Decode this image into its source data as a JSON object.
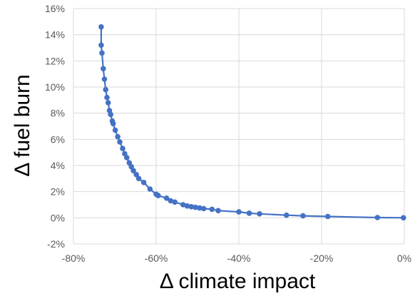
{
  "chart_data": {
    "type": "scatter",
    "title": "",
    "xlabel": "Δ climate impact",
    "ylabel": "Δ fuel burn",
    "xlim": [
      -80,
      0
    ],
    "ylim": [
      -2,
      16
    ],
    "x_ticks": [
      -80,
      -60,
      -40,
      -20,
      0
    ],
    "y_ticks": [
      -2,
      0,
      2,
      4,
      6,
      8,
      10,
      12,
      14,
      16
    ],
    "x_tick_labels": [
      "-80%",
      "-60%",
      "-40%",
      "-20%",
      "0%"
    ],
    "y_tick_labels": [
      "-2%",
      "0%",
      "2%",
      "4%",
      "6%",
      "8%",
      "10%",
      "12%",
      "14%",
      "16%"
    ],
    "grid": true,
    "legend": "none",
    "series": [
      {
        "color": "#4472C4",
        "marker": "circle",
        "line": true,
        "points": [
          [
            -73.3,
            14.6
          ],
          [
            -73.3,
            13.2
          ],
          [
            -73.1,
            12.6
          ],
          [
            -72.8,
            11.4
          ],
          [
            -72.5,
            10.6
          ],
          [
            -72.2,
            9.8
          ],
          [
            -71.9,
            9.2
          ],
          [
            -71.6,
            8.8
          ],
          [
            -71.3,
            8.2
          ],
          [
            -71.0,
            7.9
          ],
          [
            -70.6,
            7.4
          ],
          [
            -70.4,
            7.2
          ],
          [
            -69.9,
            6.7
          ],
          [
            -69.3,
            6.2
          ],
          [
            -68.8,
            5.8
          ],
          [
            -68.1,
            5.3
          ],
          [
            -67.6,
            4.9
          ],
          [
            -67.1,
            4.6
          ],
          [
            -66.5,
            4.2
          ],
          [
            -66.0,
            3.9
          ],
          [
            -65.5,
            3.6
          ],
          [
            -64.8,
            3.3
          ],
          [
            -64.2,
            3.0
          ],
          [
            -63.0,
            2.7
          ],
          [
            -61.5,
            2.2
          ],
          [
            -60.0,
            1.8
          ],
          [
            -59.5,
            1.7
          ],
          [
            -57.5,
            1.5
          ],
          [
            -56.5,
            1.3
          ],
          [
            -55.5,
            1.2
          ],
          [
            -53.5,
            1.0
          ],
          [
            -52.5,
            0.9
          ],
          [
            -51.5,
            0.85
          ],
          [
            -50.5,
            0.8
          ],
          [
            -49.5,
            0.75
          ],
          [
            -48.5,
            0.7
          ],
          [
            -46.5,
            0.65
          ],
          [
            -45.0,
            0.55
          ],
          [
            -40.0,
            0.45
          ],
          [
            -37.5,
            0.35
          ],
          [
            -35.0,
            0.3
          ],
          [
            -28.5,
            0.2
          ],
          [
            -24.5,
            0.15
          ],
          [
            -18.5,
            0.1
          ],
          [
            -6.5,
            0.02
          ],
          [
            -0.2,
            0.0
          ]
        ]
      }
    ]
  }
}
